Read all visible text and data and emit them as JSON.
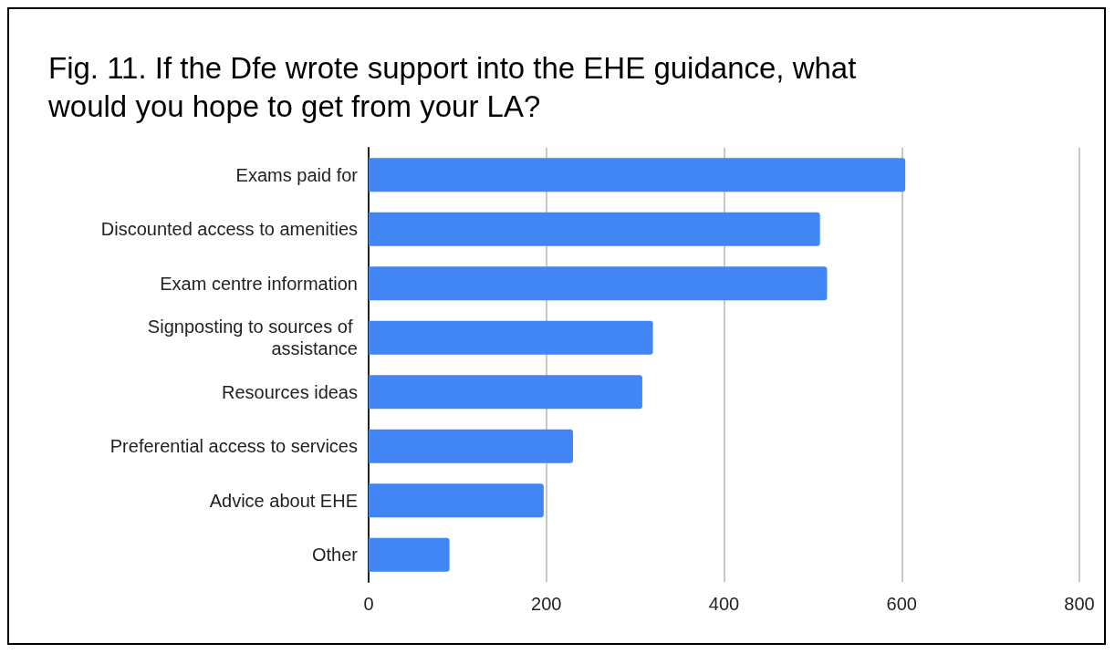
{
  "chart_data": {
    "type": "bar",
    "orientation": "horizontal",
    "title": "Fig. 11. If the Dfe wrote support into the EHE guidance, what would you hope to get from your LA?",
    "categories": [
      "Exams paid for",
      "Discounted access to amenities",
      "Exam centre information",
      "Signposting to sources of assistance",
      "Resources ideas",
      "Preferential access to services",
      "Advice about EHE",
      "Other"
    ],
    "values": [
      604,
      508,
      516,
      320,
      308,
      230,
      197,
      91
    ],
    "color": "#4285f4",
    "xlim": [
      0,
      800
    ],
    "xticks": [
      0,
      200,
      400,
      600,
      800
    ],
    "grid": "x"
  }
}
